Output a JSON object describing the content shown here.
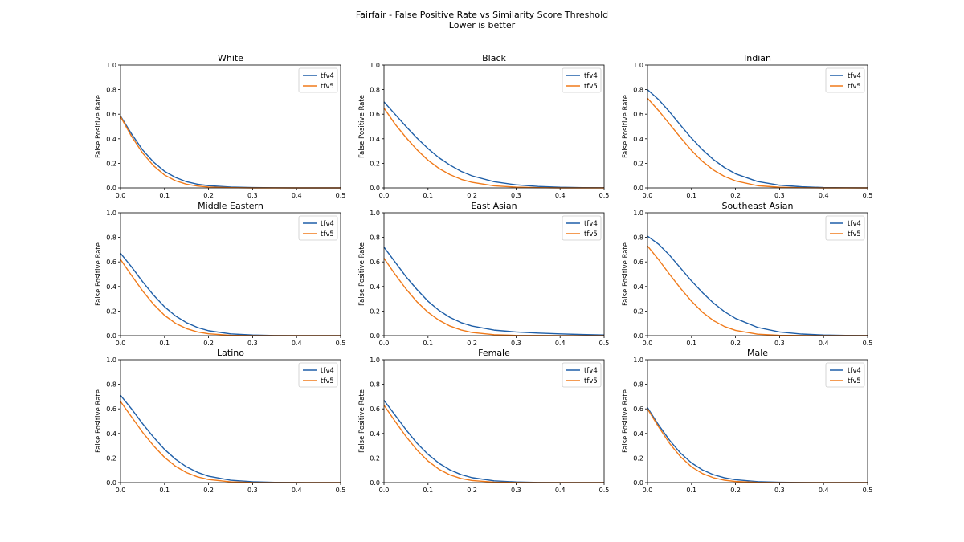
{
  "figure": {
    "title": "Fairfair - False Positive Rate vs Similarity Score Threshold",
    "subtitle": "Lower is better"
  },
  "colors": {
    "tfv4": "#1f5fa8",
    "tfv5": "#f07a1a"
  },
  "chart_data": [
    {
      "type": "line",
      "title": "White",
      "xlabel": "",
      "ylabel": "False Positive Rate",
      "xlim": [
        0.0,
        0.5
      ],
      "ylim": [
        0.0,
        1.0
      ],
      "xticks": [
        "0.0",
        "0.1",
        "0.2",
        "0.3",
        "0.4",
        "0.5"
      ],
      "yticks": [
        "0.0",
        "0.2",
        "0.4",
        "0.6",
        "0.8",
        "1.0"
      ],
      "legend": "top-right",
      "x": [
        0.0,
        0.025,
        0.05,
        0.075,
        0.1,
        0.125,
        0.15,
        0.175,
        0.2,
        0.25,
        0.3,
        0.35,
        0.4,
        0.45,
        0.5
      ],
      "series": [
        {
          "name": "tfv4",
          "values": [
            0.585,
            0.44,
            0.31,
            0.21,
            0.135,
            0.085,
            0.05,
            0.03,
            0.018,
            0.007,
            0.003,
            0.001,
            0.0,
            0.0,
            0.0
          ]
        },
        {
          "name": "tfv5",
          "values": [
            0.58,
            0.42,
            0.285,
            0.18,
            0.105,
            0.058,
            0.03,
            0.015,
            0.007,
            0.002,
            0.0,
            0.0,
            0.0,
            0.0,
            0.0
          ]
        }
      ]
    },
    {
      "type": "line",
      "title": "Black",
      "xlabel": "",
      "ylabel": "False Positive Rate",
      "xlim": [
        0.0,
        0.5
      ],
      "ylim": [
        0.0,
        1.0
      ],
      "xticks": [
        "0.0",
        "0.1",
        "0.2",
        "0.3",
        "0.4",
        "0.5"
      ],
      "yticks": [
        "0.0",
        "0.2",
        "0.4",
        "0.6",
        "0.8",
        "1.0"
      ],
      "legend": "top-right",
      "x": [
        0.0,
        0.025,
        0.05,
        0.075,
        0.1,
        0.125,
        0.15,
        0.175,
        0.2,
        0.25,
        0.3,
        0.35,
        0.4,
        0.45,
        0.5
      ],
      "series": [
        {
          "name": "tfv4",
          "values": [
            0.7,
            0.6,
            0.5,
            0.405,
            0.32,
            0.245,
            0.185,
            0.135,
            0.098,
            0.05,
            0.025,
            0.012,
            0.005,
            0.002,
            0.001
          ]
        },
        {
          "name": "tfv5",
          "values": [
            0.65,
            0.52,
            0.41,
            0.31,
            0.225,
            0.158,
            0.108,
            0.07,
            0.045,
            0.017,
            0.006,
            0.002,
            0.0,
            0.0,
            0.0
          ]
        }
      ]
    },
    {
      "type": "line",
      "title": "Indian",
      "xlabel": "",
      "ylabel": "False Positive Rate",
      "xlim": [
        0.0,
        0.5
      ],
      "ylim": [
        0.0,
        1.0
      ],
      "xticks": [
        "0.0",
        "0.1",
        "0.2",
        "0.3",
        "0.4",
        "0.5"
      ],
      "yticks": [
        "0.0",
        "0.2",
        "0.4",
        "0.6",
        "0.8",
        "1.0"
      ],
      "legend": "top-right",
      "x": [
        0.0,
        0.025,
        0.05,
        0.075,
        0.1,
        0.125,
        0.15,
        0.175,
        0.2,
        0.25,
        0.3,
        0.35,
        0.4,
        0.45,
        0.5
      ],
      "series": [
        {
          "name": "tfv4",
          "values": [
            0.8,
            0.72,
            0.62,
            0.51,
            0.405,
            0.31,
            0.23,
            0.165,
            0.115,
            0.052,
            0.022,
            0.009,
            0.003,
            0.001,
            0.0
          ]
        },
        {
          "name": "tfv5",
          "values": [
            0.73,
            0.63,
            0.52,
            0.41,
            0.305,
            0.215,
            0.145,
            0.093,
            0.057,
            0.018,
            0.005,
            0.001,
            0.0,
            0.0,
            0.0
          ]
        }
      ]
    },
    {
      "type": "line",
      "title": "Middle Eastern",
      "xlabel": "",
      "ylabel": "False Positive Rate",
      "xlim": [
        0.0,
        0.5
      ],
      "ylim": [
        0.0,
        1.0
      ],
      "xticks": [
        "0.0",
        "0.1",
        "0.2",
        "0.3",
        "0.4",
        "0.5"
      ],
      "yticks": [
        "0.0",
        "0.2",
        "0.4",
        "0.6",
        "0.8",
        "1.0"
      ],
      "legend": "top-right",
      "x": [
        0.0,
        0.025,
        0.05,
        0.075,
        0.1,
        0.125,
        0.15,
        0.175,
        0.2,
        0.25,
        0.3,
        0.35,
        0.4,
        0.45,
        0.5
      ],
      "series": [
        {
          "name": "tfv4",
          "values": [
            0.67,
            0.56,
            0.44,
            0.33,
            0.235,
            0.16,
            0.105,
            0.066,
            0.04,
            0.014,
            0.005,
            0.001,
            0.0,
            0.0,
            0.0
          ]
        },
        {
          "name": "tfv5",
          "values": [
            0.62,
            0.49,
            0.365,
            0.255,
            0.165,
            0.1,
            0.057,
            0.03,
            0.015,
            0.003,
            0.0,
            0.0,
            0.0,
            0.0,
            0.0
          ]
        }
      ]
    },
    {
      "type": "line",
      "title": "East Asian",
      "xlabel": "",
      "ylabel": "False Positive Rate",
      "xlim": [
        0.0,
        0.5
      ],
      "ylim": [
        0.0,
        1.0
      ],
      "xticks": [
        "0.0",
        "0.1",
        "0.2",
        "0.3",
        "0.4",
        "0.5"
      ],
      "yticks": [
        "0.0",
        "0.2",
        "0.4",
        "0.6",
        "0.8",
        "1.0"
      ],
      "legend": "top-right",
      "x": [
        0.0,
        0.025,
        0.05,
        0.075,
        0.1,
        0.125,
        0.15,
        0.175,
        0.2,
        0.25,
        0.3,
        0.35,
        0.4,
        0.45,
        0.5
      ],
      "series": [
        {
          "name": "tfv4",
          "values": [
            0.72,
            0.6,
            0.48,
            0.375,
            0.28,
            0.205,
            0.148,
            0.106,
            0.078,
            0.045,
            0.03,
            0.021,
            0.014,
            0.009,
            0.005
          ]
        },
        {
          "name": "tfv5",
          "values": [
            0.63,
            0.5,
            0.38,
            0.275,
            0.19,
            0.125,
            0.078,
            0.046,
            0.026,
            0.008,
            0.002,
            0.001,
            0.0,
            0.0,
            0.0
          ]
        }
      ]
    },
    {
      "type": "line",
      "title": "Southeast Asian",
      "xlabel": "",
      "ylabel": "False Positive Rate",
      "xlim": [
        0.0,
        0.5
      ],
      "ylim": [
        0.0,
        1.0
      ],
      "xticks": [
        "0.0",
        "0.1",
        "0.2",
        "0.3",
        "0.4",
        "0.5"
      ],
      "yticks": [
        "0.0",
        "0.2",
        "0.4",
        "0.6",
        "0.8",
        "1.0"
      ],
      "legend": "top-right",
      "x": [
        0.0,
        0.025,
        0.05,
        0.075,
        0.1,
        0.125,
        0.15,
        0.175,
        0.2,
        0.25,
        0.3,
        0.35,
        0.4,
        0.45,
        0.5
      ],
      "series": [
        {
          "name": "tfv4",
          "values": [
            0.81,
            0.745,
            0.655,
            0.55,
            0.445,
            0.35,
            0.265,
            0.195,
            0.14,
            0.067,
            0.03,
            0.013,
            0.005,
            0.002,
            0.001
          ]
        },
        {
          "name": "tfv5",
          "values": [
            0.73,
            0.62,
            0.5,
            0.385,
            0.28,
            0.19,
            0.122,
            0.074,
            0.043,
            0.012,
            0.003,
            0.001,
            0.0,
            0.0,
            0.0
          ]
        }
      ]
    },
    {
      "type": "line",
      "title": "Latino",
      "xlabel": "",
      "ylabel": "False Positive Rate",
      "xlim": [
        0.0,
        0.5
      ],
      "ylim": [
        0.0,
        1.0
      ],
      "xticks": [
        "0.0",
        "0.1",
        "0.2",
        "0.3",
        "0.4",
        "0.5"
      ],
      "yticks": [
        "0.0",
        "0.2",
        "0.4",
        "0.6",
        "0.8",
        "1.0"
      ],
      "legend": "top-right",
      "x": [
        0.0,
        0.025,
        0.05,
        0.075,
        0.1,
        0.125,
        0.15,
        0.175,
        0.2,
        0.25,
        0.3,
        0.35,
        0.4,
        0.45,
        0.5
      ],
      "series": [
        {
          "name": "tfv4",
          "values": [
            0.71,
            0.6,
            0.48,
            0.37,
            0.27,
            0.19,
            0.128,
            0.083,
            0.052,
            0.019,
            0.007,
            0.002,
            0.001,
            0.0,
            0.0
          ]
        },
        {
          "name": "tfv5",
          "values": [
            0.66,
            0.535,
            0.41,
            0.3,
            0.205,
            0.133,
            0.081,
            0.046,
            0.025,
            0.006,
            0.001,
            0.0,
            0.0,
            0.0,
            0.0
          ]
        }
      ]
    },
    {
      "type": "line",
      "title": "Female",
      "xlabel": "",
      "ylabel": "False Positive Rate",
      "xlim": [
        0.0,
        0.5
      ],
      "ylim": [
        0.0,
        1.0
      ],
      "xticks": [
        "0.0",
        "0.1",
        "0.2",
        "0.3",
        "0.4",
        "0.5"
      ],
      "yticks": [
        "0.0",
        "0.2",
        "0.4",
        "0.6",
        "0.8",
        "1.0"
      ],
      "legend": "top-right",
      "x": [
        0.0,
        0.025,
        0.05,
        0.075,
        0.1,
        0.125,
        0.15,
        0.175,
        0.2,
        0.25,
        0.3,
        0.35,
        0.4,
        0.45,
        0.5
      ],
      "series": [
        {
          "name": "tfv4",
          "values": [
            0.67,
            0.55,
            0.43,
            0.32,
            0.23,
            0.157,
            0.103,
            0.065,
            0.04,
            0.014,
            0.005,
            0.001,
            0.0,
            0.0,
            0.0
          ]
        },
        {
          "name": "tfv5",
          "values": [
            0.63,
            0.5,
            0.375,
            0.265,
            0.175,
            0.108,
            0.062,
            0.033,
            0.017,
            0.004,
            0.001,
            0.0,
            0.0,
            0.0,
            0.0
          ]
        }
      ]
    },
    {
      "type": "line",
      "title": "Male",
      "xlabel": "",
      "ylabel": "False Positive Rate",
      "xlim": [
        0.0,
        0.5
      ],
      "ylim": [
        0.0,
        1.0
      ],
      "xticks": [
        "0.0",
        "0.1",
        "0.2",
        "0.3",
        "0.4",
        "0.5"
      ],
      "yticks": [
        "0.0",
        "0.2",
        "0.4",
        "0.6",
        "0.8",
        "1.0"
      ],
      "legend": "top-right",
      "x": [
        0.0,
        0.025,
        0.05,
        0.075,
        0.1,
        0.125,
        0.15,
        0.175,
        0.2,
        0.25,
        0.3,
        0.35,
        0.4,
        0.45,
        0.5
      ],
      "series": [
        {
          "name": "tfv4",
          "values": [
            0.61,
            0.47,
            0.345,
            0.24,
            0.16,
            0.103,
            0.064,
            0.039,
            0.023,
            0.008,
            0.003,
            0.001,
            0.0,
            0.0,
            0.0
          ]
        },
        {
          "name": "tfv5",
          "values": [
            0.6,
            0.455,
            0.32,
            0.21,
            0.128,
            0.073,
            0.039,
            0.019,
            0.009,
            0.002,
            0.0,
            0.0,
            0.0,
            0.0,
            0.0
          ]
        }
      ]
    }
  ]
}
